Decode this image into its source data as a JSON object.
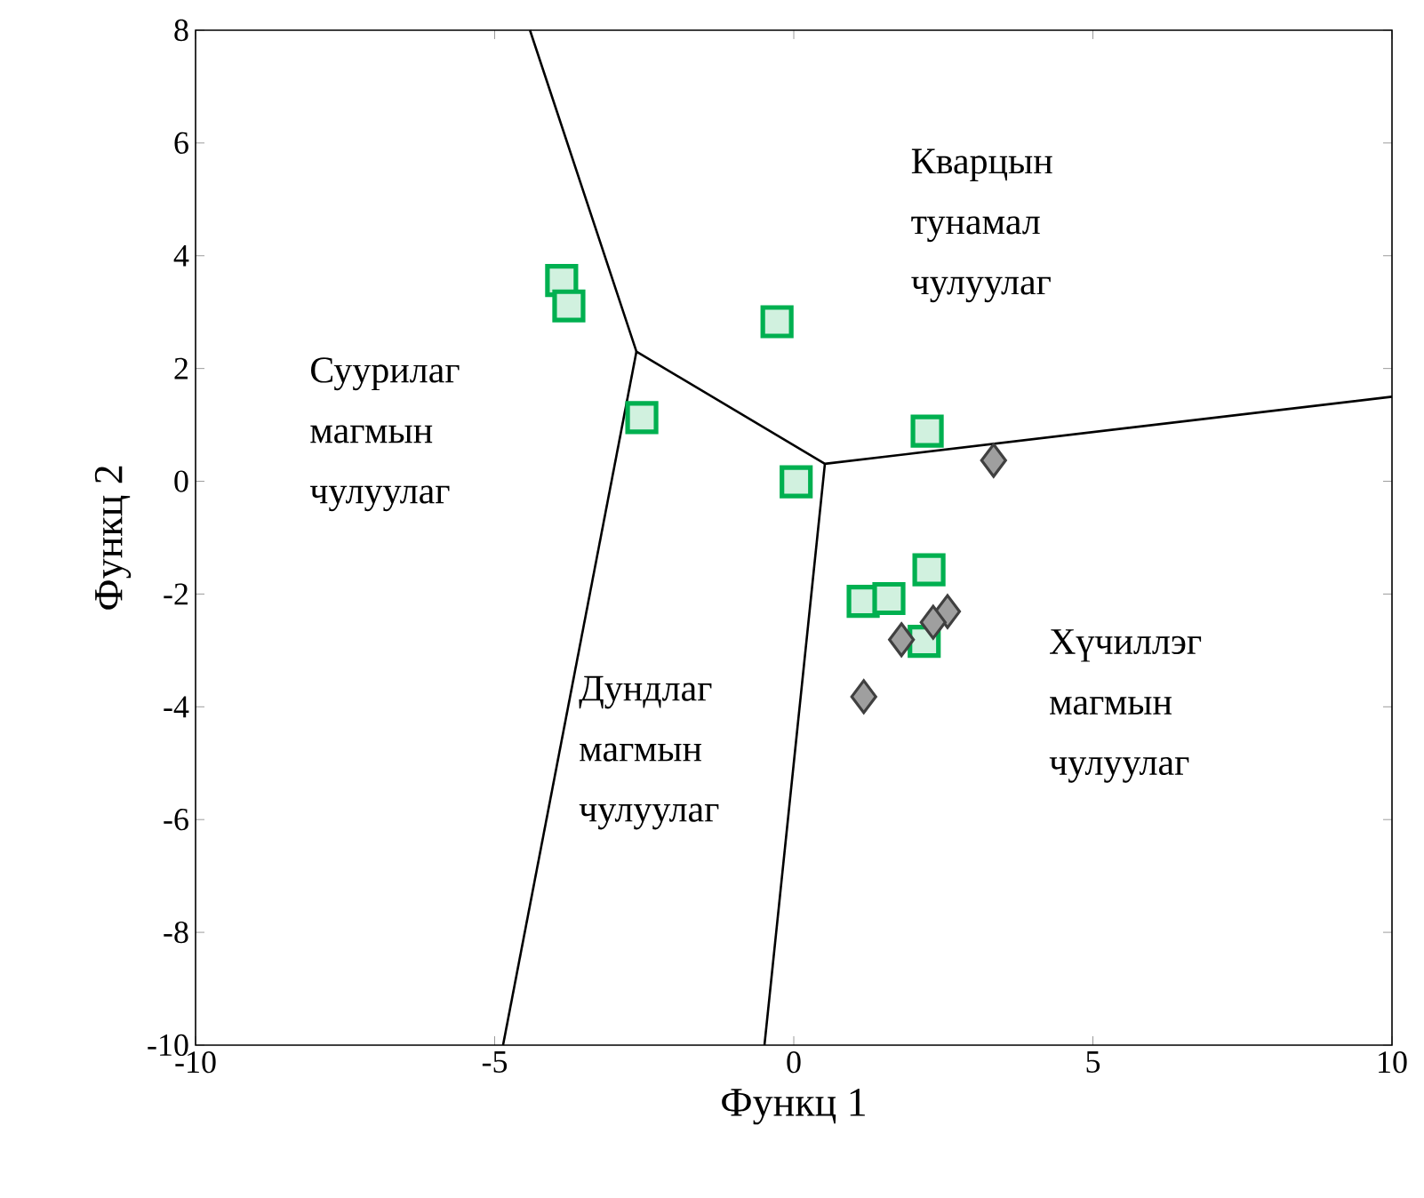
{
  "chart_data": {
    "type": "scatter",
    "xlabel": "Функц 1",
    "ylabel": "Функц 2",
    "xlim": [
      -10,
      10
    ],
    "ylim": [
      -10,
      8
    ],
    "xticks": [
      -10,
      -5,
      0,
      5,
      10
    ],
    "yticks": [
      -10,
      -8,
      -6,
      -4,
      -2,
      0,
      2,
      4,
      6,
      8
    ],
    "grid": false,
    "series": [
      {
        "marker": "square",
        "color": "#00b050",
        "x": [
          -3.88,
          -3.76,
          -0.28,
          -2.54,
          0.04,
          2.23,
          2.26,
          1.16,
          1.59,
          2.18
        ],
        "values": [
          3.56,
          3.11,
          2.83,
          1.13,
          -0.01,
          0.89,
          -1.57,
          -2.13,
          -2.08,
          -2.84
        ]
      },
      {
        "marker": "diamond",
        "color": "#404040",
        "x": [
          3.34,
          2.57,
          2.33,
          1.8,
          1.17
        ],
        "values": [
          0.37,
          -2.31,
          -2.5,
          -2.81,
          -3.82
        ]
      },
      {
        "type": "line",
        "marker": "none",
        "color": "#000000",
        "x": [
          -4.41,
          -2.63,
          0.52,
          10
        ],
        "values": [
          8,
          2.3,
          0.31,
          1.5
        ]
      },
      {
        "type": "line",
        "marker": "none",
        "color": "#000000",
        "x": [
          -2.63,
          -4.86
        ],
        "values": [
          2.3,
          -10
        ]
      },
      {
        "type": "line",
        "marker": "none",
        "color": "#000000",
        "x": [
          0.52,
          -0.49
        ],
        "values": [
          0.31,
          -10
        ]
      }
    ],
    "annotations": [
      "Кварцын тунамал чулуулаг",
      "Суурилаг магмын чулуулаг",
      "Дундлаг магмын чулуулаг",
      "Хүчиллэг магмын чулуулаг"
    ]
  }
}
